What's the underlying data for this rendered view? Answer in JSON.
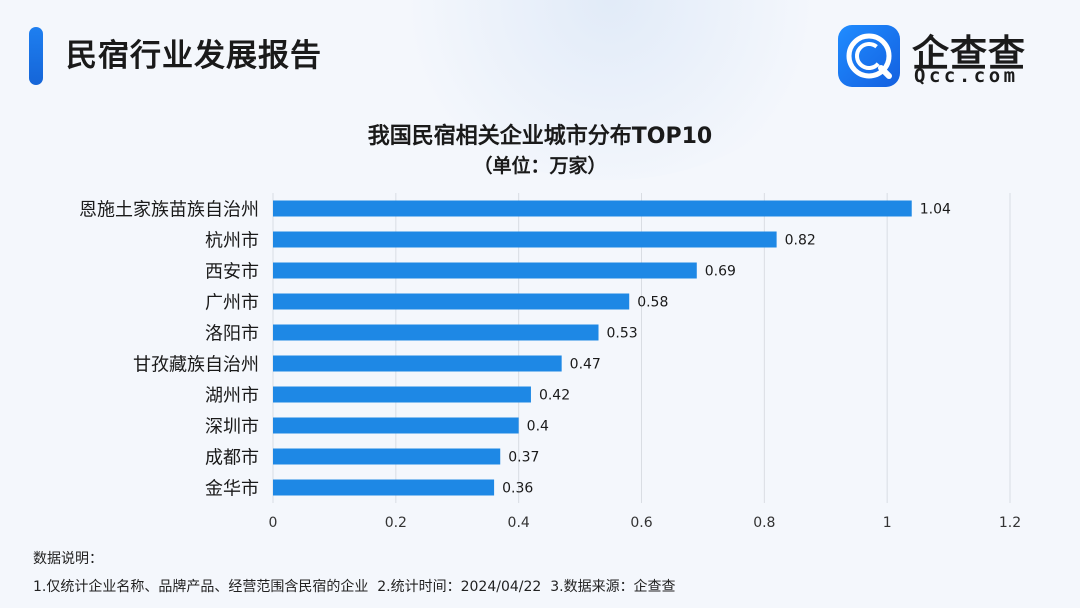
{
  "header": {
    "report_title": "民宿行业发展报告",
    "logo_cn": "企查查",
    "logo_en": "Qcc.com",
    "brand_color": "#1677ee"
  },
  "chart_data": {
    "type": "bar",
    "orientation": "horizontal",
    "title": "我国民宿相关企业城市分布TOP10",
    "subtitle": "（单位：万家）",
    "categories": [
      "恩施土家族苗族自治州",
      "杭州市",
      "西安市",
      "广州市",
      "洛阳市",
      "甘孜藏族自治州",
      "湖州市",
      "深圳市",
      "成都市",
      "金华市"
    ],
    "values": [
      1.04,
      0.82,
      0.69,
      0.58,
      0.53,
      0.47,
      0.42,
      0.4,
      0.37,
      0.36
    ],
    "value_labels": [
      "1.04",
      "0.82",
      "0.69",
      "0.58",
      "0.53",
      "0.47",
      "0.42",
      "0.4",
      "0.37",
      "0.36"
    ],
    "xlim": [
      0,
      1.2
    ],
    "xticks": [
      0,
      0.2,
      0.4,
      0.6,
      0.8,
      1,
      1.2
    ],
    "xtick_labels": [
      "0",
      "0.2",
      "0.4",
      "0.6",
      "0.8",
      "1",
      "1.2"
    ],
    "grid": "vertical",
    "bar_color": "#1e88e5"
  },
  "notes": {
    "label": "数据说明：",
    "text": "1.仅统计企业名称、品牌产品、经营范围含民宿的企业  2.统计时间：2024/04/22  3.数据来源：企查查"
  }
}
